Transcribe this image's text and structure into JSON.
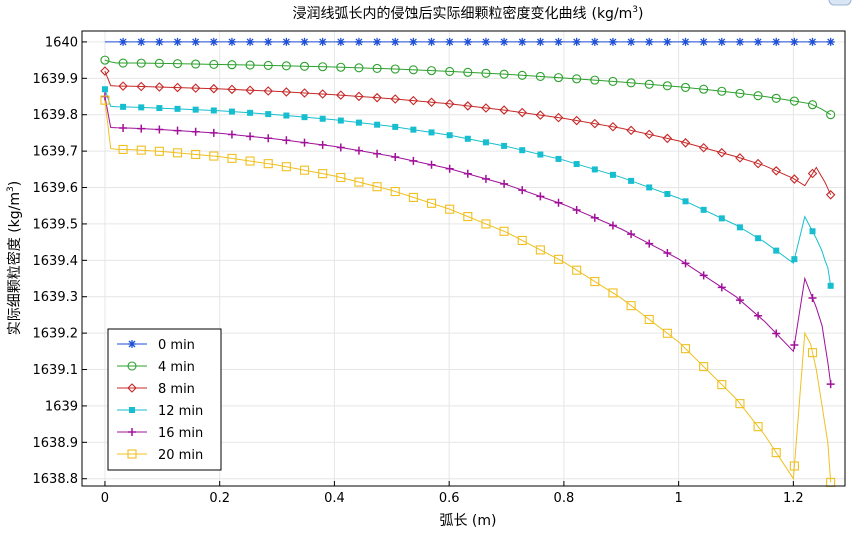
{
  "chart_data": {
    "type": "line",
    "title": "浸润线弧长内的侵蚀后实际细颗粒密度变化曲线",
    "title_unit_base": "(kg/m",
    "title_unit_sup": "3",
    "title_unit_end": ")",
    "xlabel": "弧长 (m)",
    "ylabel_base": "实际细颗粒密度 (kg/m",
    "ylabel_sup": "3",
    "ylabel_end": ")",
    "xlim": [
      -0.04,
      1.29
    ],
    "ylim": [
      1638.78,
      1640.03
    ],
    "xticks": [
      0,
      0.2,
      0.4,
      0.6,
      0.8,
      1,
      1.2
    ],
    "xtick_labels": [
      "0",
      "0.2",
      "0.4",
      "0.6",
      "0.8",
      "1",
      "1.2"
    ],
    "yticks": [
      1638.8,
      1638.9,
      1639,
      1639.1,
      1639.2,
      1639.3,
      1639.4,
      1639.5,
      1639.6,
      1639.7,
      1639.8,
      1639.9,
      1640
    ],
    "ytick_labels": [
      "1638.8",
      "1638.9",
      "1639",
      "1639.1",
      "1639.2",
      "1639.3",
      "1639.4",
      "1639.5",
      "1639.6",
      "1639.7",
      "1639.8",
      "1639.9",
      "1640"
    ],
    "grid": true,
    "legend_position": "bottom-left",
    "series": [
      {
        "name": "0 min",
        "color": "#1f4fd6",
        "marker": "asterisk",
        "x": [
          0,
          1.265
        ],
        "y": [
          1640,
          1640
        ]
      },
      {
        "name": "4 min",
        "color": "#2ca02c",
        "marker": "circle",
        "x": [
          0,
          0.01,
          0.02,
          0.05,
          0.1,
          0.2,
          0.3,
          0.4,
          0.5,
          0.6,
          0.7,
          0.8,
          0.9,
          1.0,
          1.05,
          1.1,
          1.15,
          1.2,
          1.23,
          1.25,
          1.265
        ],
        "y": [
          1639.95,
          1639.945,
          1639.942,
          1639.942,
          1639.941,
          1639.938,
          1639.935,
          1639.931,
          1639.926,
          1639.919,
          1639.911,
          1639.901,
          1639.89,
          1639.877,
          1639.869,
          1639.86,
          1639.85,
          1639.838,
          1639.83,
          1639.815,
          1639.8
        ]
      },
      {
        "name": "8 min",
        "color": "#c62828",
        "marker": "diamond",
        "x": [
          0,
          0.01,
          0.02,
          0.05,
          0.1,
          0.2,
          0.3,
          0.4,
          0.5,
          0.6,
          0.7,
          0.8,
          0.9,
          1.0,
          1.1,
          1.15,
          1.2,
          1.22,
          1.24,
          1.255,
          1.265
        ],
        "y": [
          1639.92,
          1639.88,
          1639.879,
          1639.878,
          1639.876,
          1639.871,
          1639.864,
          1639.855,
          1639.844,
          1639.83,
          1639.812,
          1639.79,
          1639.763,
          1639.728,
          1639.685,
          1639.66,
          1639.625,
          1639.605,
          1639.655,
          1639.615,
          1639.58
        ]
      },
      {
        "name": "12 min",
        "color": "#17becf",
        "marker": "square-filled",
        "x": [
          0,
          0.01,
          0.02,
          0.05,
          0.1,
          0.2,
          0.3,
          0.4,
          0.5,
          0.6,
          0.7,
          0.8,
          0.9,
          1.0,
          1.1,
          1.15,
          1.2,
          1.22,
          1.24,
          1.25,
          1.255,
          1.26,
          1.265
        ],
        "y": [
          1639.87,
          1639.823,
          1639.822,
          1639.821,
          1639.818,
          1639.811,
          1639.8,
          1639.786,
          1639.768,
          1639.744,
          1639.713,
          1639.675,
          1639.628,
          1639.571,
          1639.497,
          1639.45,
          1639.392,
          1639.52,
          1639.46,
          1639.425,
          1639.4,
          1639.38,
          1639.33
        ]
      },
      {
        "name": "16 min",
        "color": "#a0109a",
        "marker": "plus",
        "x": [
          0,
          0.01,
          0.02,
          0.05,
          0.1,
          0.2,
          0.3,
          0.4,
          0.5,
          0.6,
          0.7,
          0.8,
          0.9,
          1.0,
          1.1,
          1.15,
          1.2,
          1.22,
          1.24,
          1.25,
          1.255,
          1.26,
          1.265
        ],
        "y": [
          1639.85,
          1639.765,
          1639.764,
          1639.763,
          1639.759,
          1639.749,
          1639.733,
          1639.713,
          1639.686,
          1639.652,
          1639.608,
          1639.553,
          1639.486,
          1639.404,
          1639.3,
          1639.232,
          1639.15,
          1639.35,
          1639.27,
          1639.22,
          1639.17,
          1639.12,
          1639.06
        ]
      },
      {
        "name": "20 min",
        "color": "#f0c020",
        "marker": "square",
        "x": [
          0,
          0.01,
          0.02,
          0.05,
          0.1,
          0.2,
          0.3,
          0.4,
          0.5,
          0.6,
          0.7,
          0.8,
          0.9,
          1.0,
          1.1,
          1.15,
          1.2,
          1.22,
          1.23,
          1.24,
          1.25,
          1.255,
          1.26,
          1.265
        ],
        "y": [
          1639.84,
          1639.707,
          1639.705,
          1639.704,
          1639.699,
          1639.685,
          1639.662,
          1639.632,
          1639.592,
          1639.541,
          1639.477,
          1639.395,
          1639.296,
          1639.176,
          1639.02,
          1638.92,
          1638.8,
          1639.2,
          1639.17,
          1639.1,
          1639.0,
          1638.95,
          1638.9,
          1638.79
        ]
      }
    ]
  }
}
